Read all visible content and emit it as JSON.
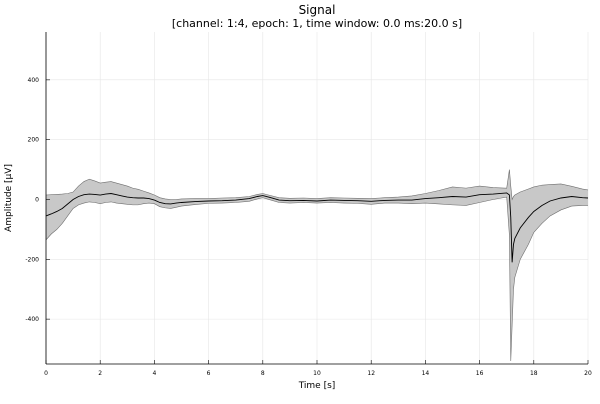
{
  "chart_data": {
    "type": "area",
    "title": "Signal",
    "subtitle": "[channel: 1:4, epoch: 1, time window: 0.0 ms:20.0 s]",
    "xlabel": "Time [s]",
    "ylabel": "Amplitude [µV]",
    "xlim": [
      0,
      20
    ],
    "ylim": [
      -550,
      560
    ],
    "xticks": [
      0,
      2,
      4,
      6,
      8,
      10,
      12,
      14,
      16,
      18,
      20
    ],
    "yticks": [
      -400,
      -200,
      0,
      200,
      400
    ],
    "xtick_labels": [
      "0",
      "2",
      "4",
      "6",
      "8",
      "10",
      "12",
      "14",
      "16",
      "18",
      "20"
    ],
    "ytick_labels": [
      "-400",
      "-200",
      "0",
      "200",
      "400"
    ],
    "grid": true,
    "legend": "none",
    "colors": {
      "mean": "#000000",
      "band": "#c8c8c8",
      "band_edge": "#6e6e6e",
      "grid": "#e6e6e6"
    },
    "series": [
      {
        "role": "mean",
        "x": [
          0,
          0.2,
          0.4,
          0.6,
          0.8,
          1.0,
          1.2,
          1.4,
          1.6,
          1.8,
          2.0,
          2.2,
          2.4,
          2.6,
          2.8,
          3.0,
          3.2,
          3.4,
          3.6,
          3.8,
          4.0,
          4.2,
          4.4,
          4.6,
          4.8,
          5.0,
          5.5,
          6.0,
          6.5,
          7.0,
          7.5,
          7.8,
          8.0,
          8.3,
          8.6,
          9.0,
          9.5,
          10.0,
          10.5,
          11.0,
          11.5,
          12.0,
          12.5,
          13.0,
          13.5,
          14.0,
          14.5,
          15.0,
          15.5,
          16.0,
          16.5,
          17.0,
          17.1,
          17.15,
          17.2,
          17.25,
          17.3,
          17.5,
          17.8,
          18.0,
          18.3,
          18.6,
          19.0,
          19.4,
          19.8,
          20.0
        ],
        "y": [
          -55,
          -48,
          -40,
          -30,
          -15,
          0,
          10,
          16,
          18,
          17,
          15,
          18,
          20,
          16,
          12,
          8,
          6,
          5,
          5,
          3,
          -2,
          -10,
          -14,
          -15,
          -12,
          -10,
          -7,
          -5,
          -4,
          -2,
          3,
          10,
          13,
          6,
          -2,
          -4,
          -3,
          -5,
          -2,
          -3,
          -4,
          -6,
          -3,
          -2,
          -2,
          3,
          6,
          10,
          8,
          16,
          18,
          22,
          15,
          -60,
          -210,
          -150,
          -130,
          -95,
          -60,
          -40,
          -20,
          -5,
          5,
          10,
          6,
          5
        ]
      },
      {
        "role": "band_upper",
        "x": [
          0,
          0.2,
          0.4,
          0.6,
          0.8,
          1.0,
          1.2,
          1.4,
          1.6,
          1.8,
          2.0,
          2.2,
          2.4,
          2.6,
          2.8,
          3.0,
          3.2,
          3.4,
          3.6,
          3.8,
          4.0,
          4.2,
          4.4,
          4.6,
          4.8,
          5.0,
          5.5,
          6.0,
          6.5,
          7.0,
          7.5,
          7.8,
          8.0,
          8.3,
          8.6,
          9.0,
          9.5,
          10.0,
          10.5,
          11.0,
          11.5,
          12.0,
          12.5,
          13.0,
          13.5,
          14.0,
          14.5,
          15.0,
          15.5,
          16.0,
          16.5,
          17.0,
          17.1,
          17.15,
          17.2,
          17.25,
          17.3,
          17.5,
          17.8,
          18.0,
          18.3,
          18.6,
          19.0,
          19.4,
          19.8,
          20.0
        ],
        "y": [
          15,
          16,
          17,
          18,
          20,
          25,
          45,
          60,
          68,
          62,
          55,
          58,
          60,
          55,
          50,
          45,
          38,
          34,
          28,
          22,
          15,
          6,
          2,
          0,
          0,
          2,
          3,
          3,
          5,
          6,
          10,
          17,
          20,
          13,
          6,
          4,
          5,
          3,
          6,
          5,
          4,
          3,
          6,
          8,
          12,
          20,
          30,
          42,
          38,
          45,
          40,
          38,
          100,
          45,
          0,
          10,
          15,
          25,
          35,
          42,
          48,
          50,
          52,
          44,
          35,
          32
        ]
      },
      {
        "role": "band_lower",
        "x": [
          0,
          0.2,
          0.4,
          0.6,
          0.8,
          1.0,
          1.2,
          1.4,
          1.6,
          1.8,
          2.0,
          2.2,
          2.4,
          2.6,
          2.8,
          3.0,
          3.2,
          3.4,
          3.6,
          3.8,
          4.0,
          4.2,
          4.4,
          4.6,
          4.8,
          5.0,
          5.5,
          6.0,
          6.5,
          7.0,
          7.5,
          7.8,
          8.0,
          8.3,
          8.6,
          9.0,
          9.5,
          10.0,
          10.5,
          11.0,
          11.5,
          12.0,
          12.5,
          13.0,
          13.5,
          14.0,
          14.5,
          15.0,
          15.5,
          16.0,
          16.5,
          17.0,
          17.1,
          17.15,
          17.2,
          17.25,
          17.3,
          17.5,
          17.8,
          18.0,
          18.3,
          18.6,
          19.0,
          19.4,
          19.8,
          20.0
        ],
        "y": [
          -135,
          -115,
          -100,
          -80,
          -55,
          -30,
          -18,
          -12,
          -8,
          -10,
          -14,
          -10,
          -8,
          -12,
          -14,
          -16,
          -18,
          -18,
          -14,
          -12,
          -14,
          -24,
          -28,
          -30,
          -26,
          -22,
          -17,
          -13,
          -12,
          -10,
          -6,
          2,
          6,
          -2,
          -10,
          -12,
          -10,
          -12,
          -10,
          -12,
          -13,
          -16,
          -12,
          -12,
          -14,
          -12,
          -15,
          -18,
          -20,
          -10,
          0,
          8,
          -120,
          -540,
          -420,
          -300,
          -260,
          -200,
          -150,
          -110,
          -80,
          -55,
          -35,
          -22,
          -20,
          -20
        ]
      }
    ]
  }
}
